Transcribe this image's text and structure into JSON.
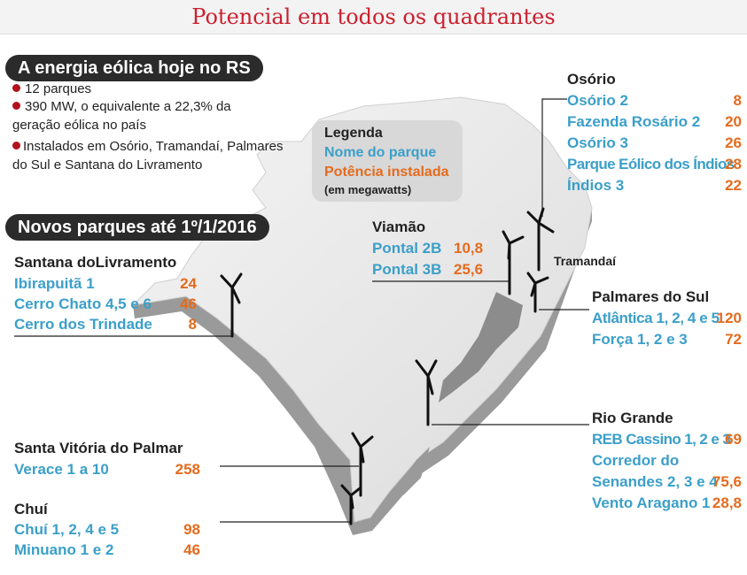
{
  "title": "Potencial em todos os quadrantes",
  "today": {
    "heading": "A energia eólica hoje no RS",
    "bullets": [
      "12 parques",
      "390 MW, o equivalente a 22,3% da",
      "geração eólica no país",
      "Instalados em Osório, Tramandaí, Palmares",
      "do Sul e Santana do Livramento"
    ]
  },
  "new_parks_heading": "Novos parques até 1º/1/2016",
  "legend": {
    "title": "Legenda",
    "name_label": "Nome do parque",
    "power_label": "Potência instalada",
    "unit": "(em megawatts)",
    "name_color": "#3b9fc9",
    "power_color": "#e46b1e"
  },
  "map_labels": {
    "tramandai": "Tramandaí"
  },
  "regions": {
    "osorio": {
      "name": "Osório",
      "parks": [
        {
          "name": "Osório 2",
          "mw": "8"
        },
        {
          "name": "Fazenda Rosário 2",
          "mw": "20"
        },
        {
          "name": "Osório 3",
          "mw": "26"
        },
        {
          "name": "Parque Eólico dos Índios",
          "mw": "28"
        },
        {
          "name": "Índios 3",
          "mw": "22"
        }
      ]
    },
    "viamao": {
      "name": "Viamão",
      "parks": [
        {
          "name": "Pontal 2B",
          "mw": "10,8"
        },
        {
          "name": "Pontal 3B",
          "mw": "25,6"
        }
      ]
    },
    "santana": {
      "name": "Santana doLivramento",
      "parks": [
        {
          "name": "Ibirapuitã 1",
          "mw": "24"
        },
        {
          "name": "Cerro Chato 4,5 e 6",
          "mw": "46"
        },
        {
          "name": "Cerro dos Trindade",
          "mw": "8"
        }
      ]
    },
    "palmares": {
      "name": "Palmares do Sul",
      "parks": [
        {
          "name": "Atlântica 1, 2, 4 e 5",
          "mw": "120"
        },
        {
          "name": "Força 1, 2 e 3",
          "mw": "72"
        }
      ]
    },
    "riogrande": {
      "name": "Rio Grande",
      "parks": [
        {
          "name": "REB Cassino 1, 2 e 3",
          "mw": "69"
        },
        {
          "name": "Corredor do",
          "mw": ""
        },
        {
          "name": "Senandes 2, 3 e 4",
          "mw": "75,6"
        },
        {
          "name": "Vento Aragano 1",
          "mw": "28,8"
        }
      ]
    },
    "santavitoria": {
      "name": "Santa Vitória do Palmar",
      "parks": [
        {
          "name": "Verace 1 a 10",
          "mw": "258"
        }
      ]
    },
    "chui": {
      "name": "Chuí",
      "parks": [
        {
          "name": "Chuí 1, 2, 4 e 5",
          "mw": "98"
        },
        {
          "name": "Minuano 1 e 2",
          "mw": "46"
        }
      ]
    }
  }
}
